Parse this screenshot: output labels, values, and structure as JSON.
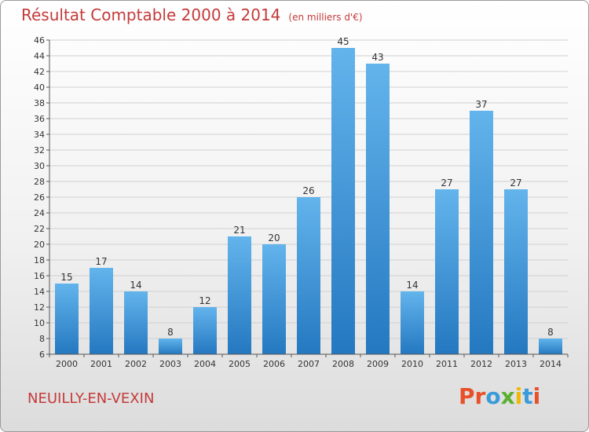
{
  "header": {
    "title": "Résultat Comptable 2000 à 2014",
    "subtitle": "(en milliers d'€)"
  },
  "footer": {
    "commune": "NEUILLY-EN-VEXIN",
    "logo": "Proxiti",
    "logo_colors": [
      "#e8502a",
      "#e8502a",
      "#3a9bd9",
      "#5bb030",
      "#f2b705",
      "#3a9bd9",
      "#e8502a"
    ]
  },
  "colors": {
    "bar_light": "#63b4ec",
    "bar_dark": "#2478c0",
    "grid": "#d0d0d0",
    "axis": "#555555"
  },
  "chart_data": {
    "type": "bar",
    "title": "Résultat Comptable 2000 à 2014",
    "subtitle": "(en milliers d'€)",
    "categories": [
      "2000",
      "2001",
      "2002",
      "2003",
      "2004",
      "2005",
      "2006",
      "2007",
      "2008",
      "2009",
      "2010",
      "2011",
      "2012",
      "2013",
      "2014"
    ],
    "values": [
      15,
      17,
      14,
      8,
      12,
      21,
      20,
      26,
      45,
      43,
      14,
      27,
      37,
      27,
      8
    ],
    "ylim": [
      6,
      46
    ],
    "ytick_step": 2,
    "grid": true,
    "legend": "none"
  }
}
